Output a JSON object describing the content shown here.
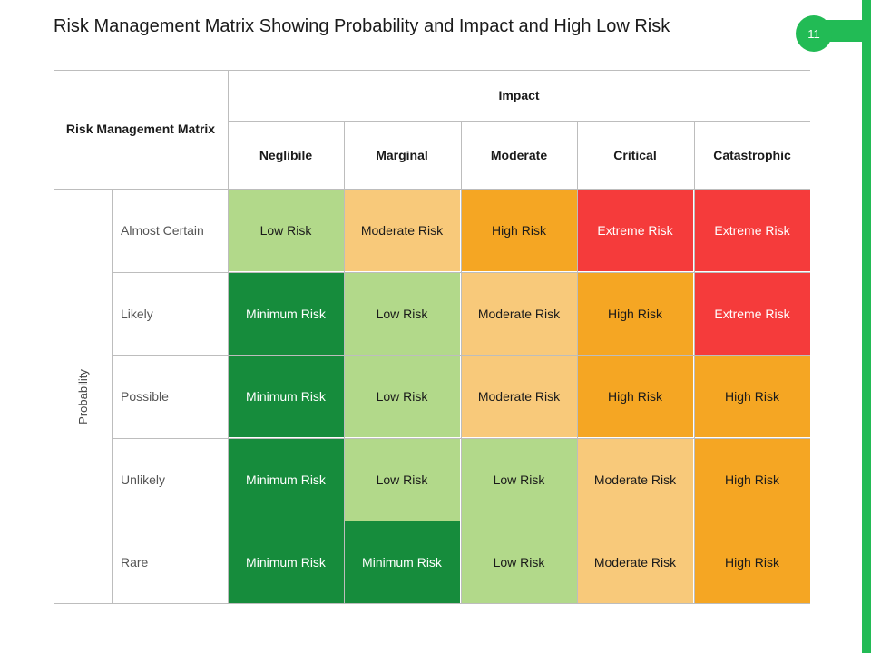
{
  "title": "Risk Management Matrix Showing Probability and Impact and High Low Risk",
  "page_number": "11",
  "colors": {
    "accent_green": "#22bb55",
    "minimum": "#168c3c",
    "low": "#b2d98a",
    "moderate": "#f8c97a",
    "high": "#f5a623",
    "extreme": "#f53b3b"
  },
  "matrix": {
    "corner_label": "Risk Management Matrix",
    "impact_label": "Impact",
    "probability_label": "Probability",
    "impact_levels": [
      "Neglibile",
      "Marginal",
      "Moderate",
      "Critical",
      "Catastrophic"
    ],
    "rows": [
      {
        "label": "Almost Certain",
        "cells": [
          {
            "text": "Low Risk",
            "level": "low"
          },
          {
            "text": "Moderate  Risk",
            "level": "moderate"
          },
          {
            "text": "High Risk",
            "level": "high"
          },
          {
            "text": "Extreme Risk",
            "level": "extreme"
          },
          {
            "text": "Extreme Risk",
            "level": "extreme"
          }
        ]
      },
      {
        "label": "Likely",
        "cells": [
          {
            "text": "Minimum Risk",
            "level": "minimum"
          },
          {
            "text": "Low Risk",
            "level": "low"
          },
          {
            "text": "Moderate  Risk",
            "level": "moderate"
          },
          {
            "text": "High Risk",
            "level": "high"
          },
          {
            "text": "Extreme Risk",
            "level": "extreme"
          }
        ]
      },
      {
        "label": "Possible",
        "cells": [
          {
            "text": "Minimum Risk",
            "level": "minimum"
          },
          {
            "text": "Low Risk",
            "level": "low"
          },
          {
            "text": "Moderate  Risk",
            "level": "moderate"
          },
          {
            "text": "High Risk",
            "level": "high"
          },
          {
            "text": "High Risk",
            "level": "high"
          }
        ]
      },
      {
        "label": "Unlikely",
        "cells": [
          {
            "text": "Minimum Risk",
            "level": "minimum"
          },
          {
            "text": "Low Risk",
            "level": "low"
          },
          {
            "text": "Low Risk",
            "level": "low"
          },
          {
            "text": "Moderate  Risk",
            "level": "moderate"
          },
          {
            "text": "High Risk",
            "level": "high"
          }
        ]
      },
      {
        "label": "Rare",
        "cells": [
          {
            "text": "Minimum Risk",
            "level": "minimum"
          },
          {
            "text": "Minimum Risk",
            "level": "minimum"
          },
          {
            "text": "Low Risk",
            "level": "low"
          },
          {
            "text": "Moderate  Risk",
            "level": "moderate"
          },
          {
            "text": "High Risk",
            "level": "high"
          }
        ]
      }
    ]
  }
}
